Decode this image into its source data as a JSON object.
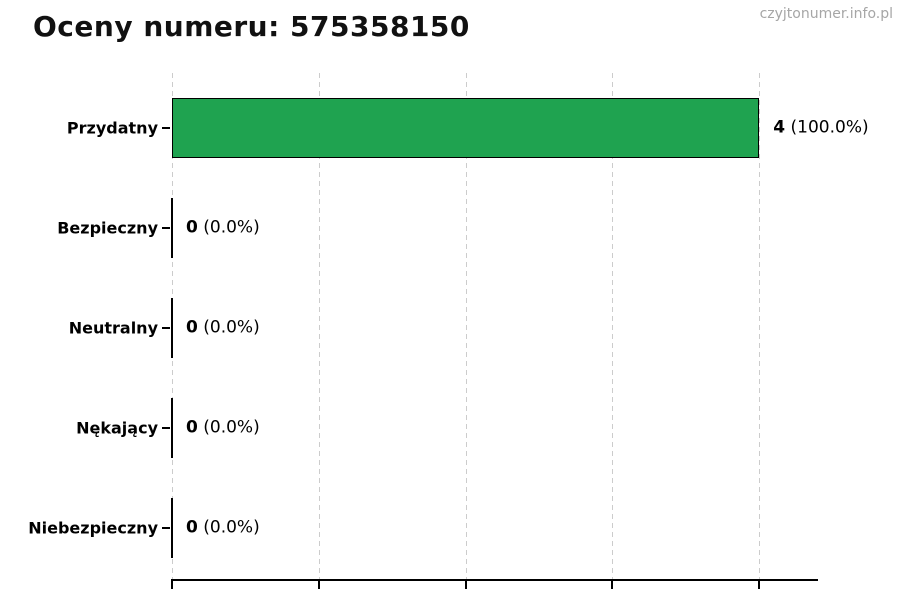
{
  "page_title": "Oceny numeru: 575358150",
  "watermark": "czyjtonumer.info.pl",
  "chart_data": {
    "type": "bar",
    "orientation": "horizontal",
    "title": "Oceny numeru: 575358150",
    "categories": [
      "Przydatny",
      "Bezpieczny",
      "Neutralny",
      "Nękający",
      "Niebezpieczny"
    ],
    "values": [
      4,
      0,
      0,
      0,
      0
    ],
    "value_displays": [
      "4",
      "0",
      "0",
      "0",
      "0"
    ],
    "percent_labels": [
      "(100.0%)",
      "(0.0%)",
      "(0.0%)",
      "(0.0%)",
      "(0.0%)"
    ],
    "xlabel": "",
    "ylabel": "",
    "xlim": [
      0,
      4.4
    ],
    "xticks": [
      0,
      1,
      2,
      3,
      4
    ],
    "xtick_labels_visible": false,
    "grid": "vertical-dashed",
    "legend": "none",
    "bar_color": "#1fa350",
    "bar_edge_color": "#000000",
    "gridline_color": "#cccccc",
    "axis_color": "#000000",
    "watermark_color": "#a6a6a6"
  }
}
